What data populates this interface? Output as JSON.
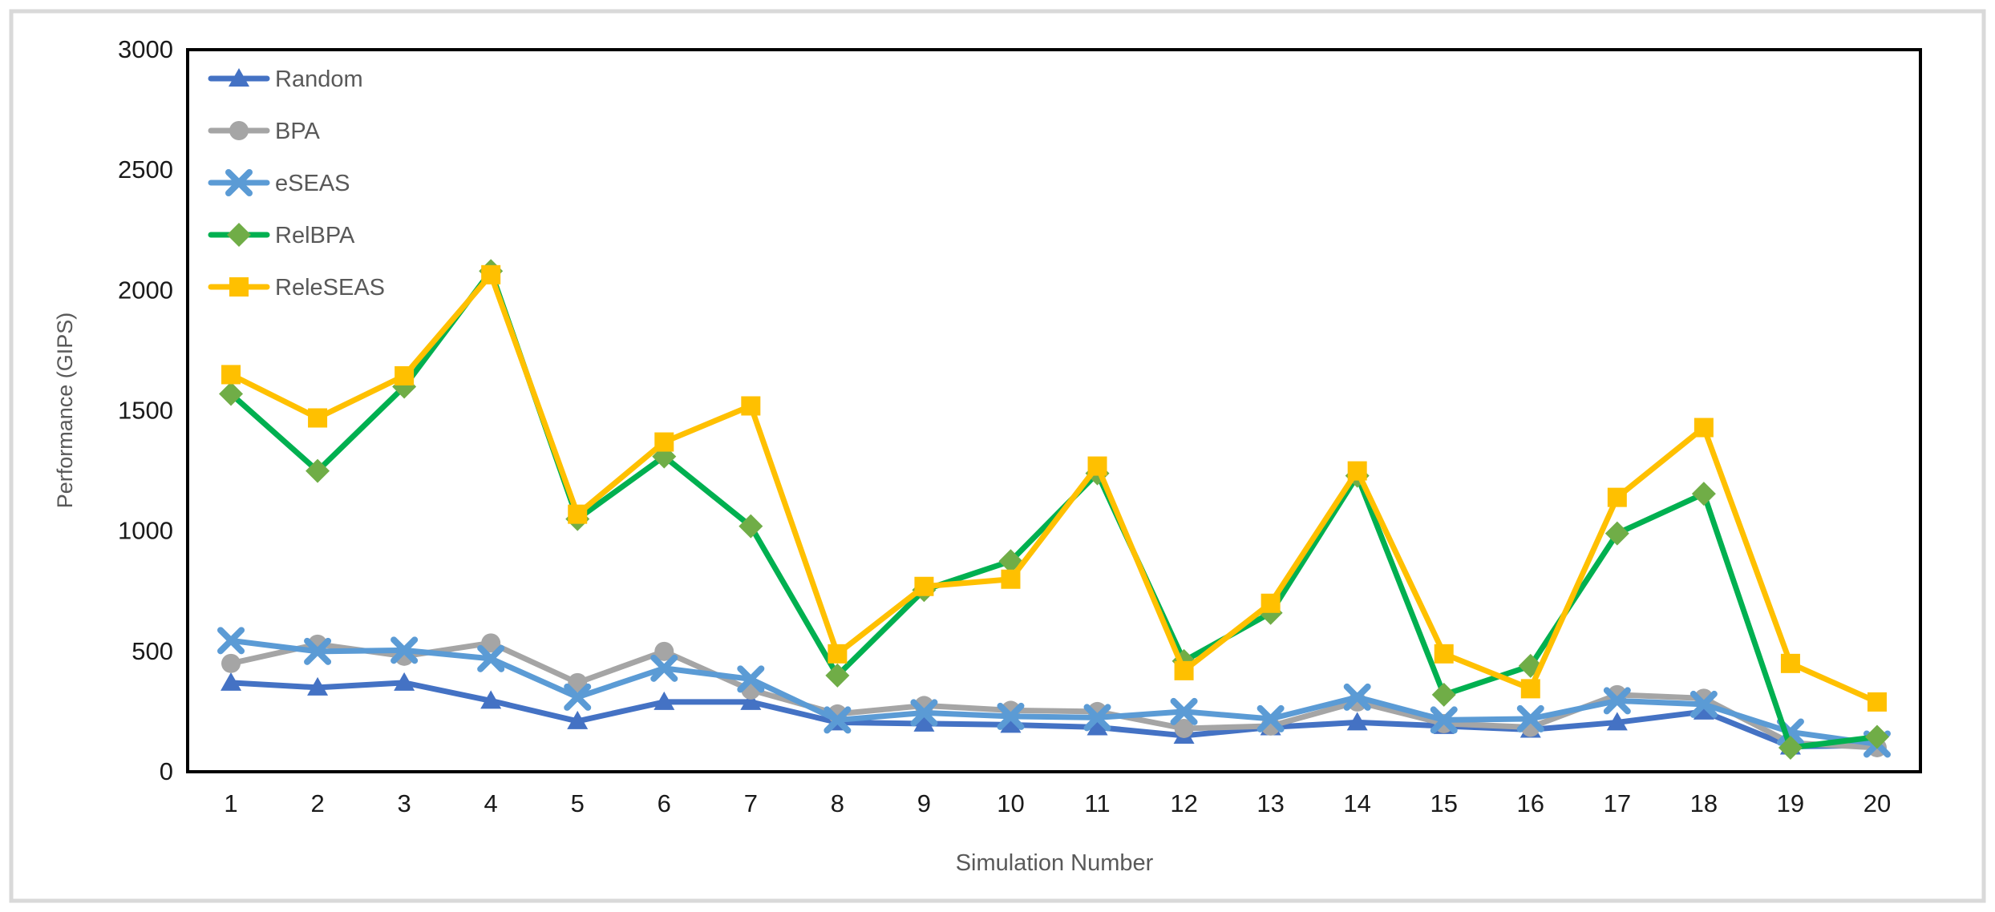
{
  "figure": {
    "background": "#ffffff",
    "outer_border_color": "#d9d9d9",
    "plot_border_color": "#000000",
    "tick_label_color": "#1a1a1a",
    "axis_title_color": "#595959",
    "legend_text_color": "#595959"
  },
  "chart_data": {
    "type": "line",
    "title": "",
    "xlabel": "Simulation Number",
    "ylabel": "Performance (GIPS)",
    "x": [
      1,
      2,
      3,
      4,
      5,
      6,
      7,
      8,
      9,
      10,
      11,
      12,
      13,
      14,
      15,
      16,
      17,
      18,
      19,
      20
    ],
    "ylim": [
      0,
      3000
    ],
    "ytick_step": 500,
    "yticks": [
      0,
      500,
      1000,
      1500,
      2000,
      2500,
      3000
    ],
    "grid": false,
    "legend_position": "top-left-inside",
    "series": [
      {
        "name": "Random",
        "color": "#4472C4",
        "marker": "triangle",
        "marker_color": "#4472C4",
        "values": [
          370,
          350,
          370,
          295,
          210,
          290,
          290,
          205,
          200,
          195,
          185,
          150,
          185,
          205,
          190,
          175,
          205,
          250,
          105,
          110
        ]
      },
      {
        "name": "BPA",
        "color": "#A5A5A5",
        "marker": "circle",
        "marker_color": "#A5A5A5",
        "values": [
          450,
          530,
          480,
          535,
          370,
          500,
          340,
          240,
          275,
          255,
          250,
          180,
          190,
          290,
          200,
          185,
          320,
          305,
          120,
          100
        ]
      },
      {
        "name": "eSEAS",
        "color": "#5B9BD5",
        "marker": "x",
        "marker_color": "#5B9BD5",
        "values": [
          545,
          500,
          505,
          470,
          310,
          430,
          385,
          215,
          245,
          230,
          225,
          250,
          220,
          310,
          215,
          220,
          295,
          280,
          165,
          115
        ]
      },
      {
        "name": "RelBPA",
        "color": "#00B050",
        "marker": "diamond",
        "marker_color": "#70AD47",
        "values": [
          1570,
          1250,
          1600,
          2080,
          1050,
          1310,
          1020,
          400,
          755,
          875,
          1240,
          460,
          660,
          1230,
          320,
          440,
          990,
          1155,
          100,
          145
        ]
      },
      {
        "name": "ReleSEAS",
        "color": "#FFC000",
        "marker": "square",
        "marker_color": "#FFC000",
        "values": [
          1650,
          1470,
          1645,
          2065,
          1070,
          1370,
          1520,
          490,
          770,
          800,
          1270,
          420,
          700,
          1250,
          490,
          345,
          1140,
          1430,
          450,
          290
        ]
      }
    ]
  }
}
